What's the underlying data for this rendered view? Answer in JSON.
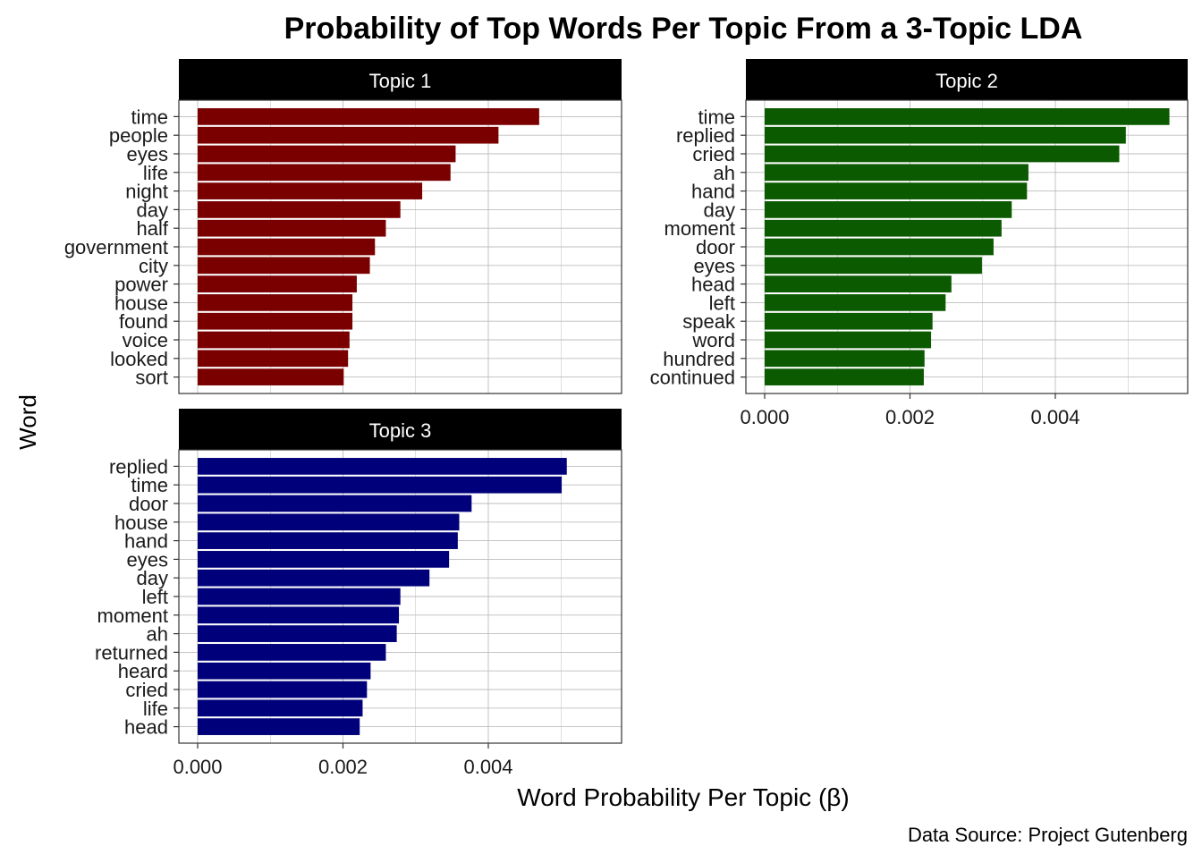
{
  "chart_data": {
    "type": "bar",
    "orientation": "horizontal",
    "title": "Probability of Top Words Per Topic From a 3-Topic LDA",
    "xlabel": "Word Probability Per Topic (β)",
    "ylabel": "Word",
    "caption": "Data Source: Project Gutenberg",
    "xlim": [
      0,
      0.0058
    ],
    "xticks": [
      "0.000",
      "0.002",
      "0.004"
    ],
    "xtick_values": [
      0.0,
      0.002,
      0.004
    ],
    "grid": true,
    "legend": "none",
    "panels": [
      {
        "name": "Topic 1",
        "color": "#7a0000",
        "categories": [
          "time",
          "people",
          "eyes",
          "life",
          "night",
          "day",
          "half",
          "government",
          "city",
          "power",
          "house",
          "found",
          "voice",
          "looked",
          "sort"
        ],
        "values": [
          0.0047,
          0.00414,
          0.00355,
          0.00348,
          0.00309,
          0.00279,
          0.00259,
          0.00244,
          0.00237,
          0.00219,
          0.00213,
          0.00213,
          0.00209,
          0.00207,
          0.00201
        ]
      },
      {
        "name": "Topic 2",
        "color": "#0b5a00",
        "categories": [
          "time",
          "replied",
          "cried",
          "ah",
          "hand",
          "day",
          "moment",
          "door",
          "eyes",
          "head",
          "left",
          "speak",
          "word",
          "hundred",
          "continued"
        ],
        "values": [
          0.00557,
          0.00497,
          0.00488,
          0.00363,
          0.00361,
          0.0034,
          0.00326,
          0.00315,
          0.00299,
          0.00257,
          0.00249,
          0.00231,
          0.00229,
          0.0022,
          0.00219
        ]
      },
      {
        "name": "Topic 3",
        "color": "#00007a",
        "categories": [
          "replied",
          "time",
          "door",
          "house",
          "hand",
          "eyes",
          "day",
          "left",
          "moment",
          "ah",
          "returned",
          "heard",
          "cried",
          "life",
          "head"
        ],
        "values": [
          0.00508,
          0.00501,
          0.00377,
          0.0036,
          0.00358,
          0.00346,
          0.00319,
          0.00279,
          0.00277,
          0.00274,
          0.00259,
          0.00238,
          0.00233,
          0.00227,
          0.00223
        ]
      }
    ]
  }
}
